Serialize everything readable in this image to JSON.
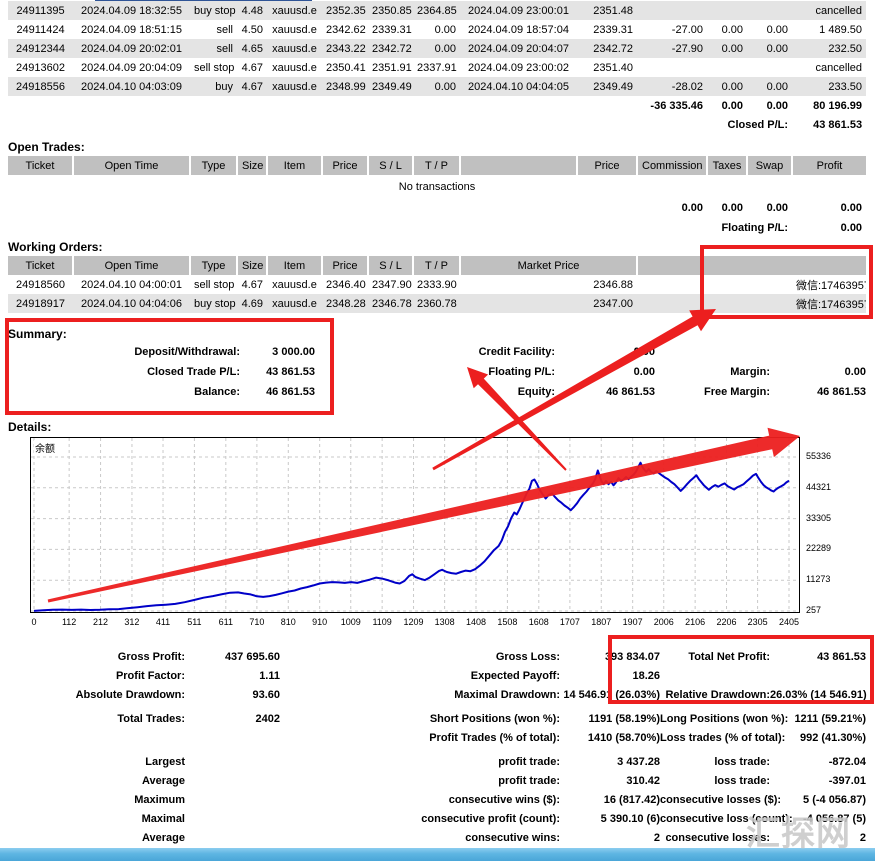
{
  "colors": {
    "annotation_red": "#ec1f1f",
    "chart_line": "#0000c8",
    "table_header_bg": "#c0c0c0",
    "row_stripe": "#e4e4e4",
    "bottom_bar_blue": "#5db5e2"
  },
  "closed_trades": {
    "rows": [
      [
        "24911395",
        "2024.04.09 18:32:55",
        "buy stop",
        "4.48",
        "xauusd.e",
        "2352.35",
        "2350.85",
        "2364.85",
        "2024.04.09 23:00:01",
        "2351.48",
        "",
        "",
        "",
        "cancelled"
      ],
      [
        "24911424",
        "2024.04.09 18:51:15",
        "sell",
        "4.50",
        "xauusd.e",
        "2342.62",
        "2339.31",
        "0.00",
        "2024.04.09 18:57:04",
        "2339.31",
        "-27.00",
        "0.00",
        "0.00",
        "1 489.50"
      ],
      [
        "24912344",
        "2024.04.09 20:02:01",
        "sell",
        "4.65",
        "xauusd.e",
        "2343.22",
        "2342.72",
        "0.00",
        "2024.04.09 20:04:07",
        "2342.72",
        "-27.90",
        "0.00",
        "0.00",
        "232.50"
      ],
      [
        "24913602",
        "2024.04.09 20:04:09",
        "sell stop",
        "4.67",
        "xauusd.e",
        "2350.41",
        "2351.91",
        "2337.91",
        "2024.04.09 23:00:02",
        "2351.40",
        "",
        "",
        "",
        "cancelled"
      ],
      [
        "24918556",
        "2024.04.10 04:03:09",
        "buy",
        "4.67",
        "xauusd.e",
        "2348.99",
        "2349.49",
        "0.00",
        "2024.04.10 04:04:05",
        "2349.49",
        "-28.02",
        "0.00",
        "0.00",
        "233.50"
      ]
    ],
    "totals": {
      "commission": "-36 335.46",
      "taxes": "0.00",
      "swap": "0.00",
      "profit": "80 196.99"
    },
    "closed_pl_label": "Closed P/L:",
    "closed_pl_value": "43 861.53"
  },
  "open_trades": {
    "title": "Open Trades:",
    "headers": [
      {
        "t": "Ticket"
      },
      {
        "t": "Open Time"
      },
      {
        "t": "Type"
      },
      {
        "t": "Size"
      },
      {
        "t": "Item"
      },
      {
        "t": "Price"
      },
      {
        "t": "S / L"
      },
      {
        "t": "T / P"
      },
      {
        "t": ""
      },
      {
        "t": "Price"
      },
      {
        "t": "Commission"
      },
      {
        "t": "Taxes"
      },
      {
        "t": "Swap"
      },
      {
        "t": "Profit"
      }
    ],
    "empty_text": "No transactions",
    "totals": {
      "commission": "0.00",
      "taxes": "0.00",
      "swap": "0.00",
      "profit": "0.00"
    },
    "floating_pl_label": "Floating P/L:",
    "floating_pl_value": "0.00"
  },
  "working_orders": {
    "title": "Working Orders:",
    "headers": [
      {
        "t": "Ticket"
      },
      {
        "t": "Open Time"
      },
      {
        "t": "Type"
      },
      {
        "t": "Size"
      },
      {
        "t": "Item"
      },
      {
        "t": "Price"
      },
      {
        "t": "S / L"
      },
      {
        "t": "T / P"
      },
      {
        "t": "Market Price",
        "span": 2
      },
      {
        "t": "",
        "span": 4
      }
    ],
    "rows": [
      [
        "24918560",
        "2024.04.10 04:00:01",
        "sell stop",
        "4.67",
        "xauusd.e",
        "2346.40",
        "2347.90",
        "2333.90",
        "",
        "2346.88",
        "",
        "",
        "",
        "微信:1746395789"
      ],
      [
        "24918917",
        "2024.04.10 04:04:06",
        "buy stop",
        "4.69",
        "xauusd.e",
        "2348.28",
        "2346.78",
        "2360.78",
        "",
        "2347.00",
        "",
        "",
        "",
        "微信:1746395789"
      ]
    ]
  },
  "summary": {
    "title": "Summary:",
    "col1": [
      {
        "label": "Deposit/Withdrawal:",
        "value": "3 000.00"
      },
      {
        "label": "Closed Trade P/L:",
        "value": "43 861.53"
      },
      {
        "label": "Balance:",
        "value": "46 861.53"
      }
    ],
    "col2": [
      {
        "label": "Credit Facility:",
        "value": "0.00"
      },
      {
        "label": "Floating P/L:",
        "value": "0.00"
      },
      {
        "label": "Equity:",
        "value": "46 861.53"
      }
    ],
    "col3": [
      {
        "label": "",
        "value": ""
      },
      {
        "label": "Margin:",
        "value": "0.00"
      },
      {
        "label": "Free Margin:",
        "value": "46 861.53"
      }
    ]
  },
  "details": {
    "title": "Details:",
    "stats": [
      [
        "Gross Profit:",
        "437 695.60",
        "Gross Loss:",
        "393 834.07",
        "Total Net Profit:",
        "43 861.53"
      ],
      [
        "Profit Factor:",
        "1.11",
        "Expected Payoff:",
        "18.26",
        "",
        ""
      ],
      [
        "Absolute Drawdown:",
        "93.60",
        "Maximal Drawdown:",
        "14 546.91 (26.03%)",
        "Relative Drawdown:",
        "26.03% (14 546.91)"
      ],
      [
        "Total Trades:",
        "2402",
        "Short Positions (won %):",
        "1191 (58.19%)",
        "Long Positions (won %):",
        "1211 (59.21%)"
      ],
      [
        "",
        "",
        "Profit Trades (% of total):",
        "1410 (58.70%)",
        "Loss trades (% of total):",
        "992 (41.30%)"
      ],
      [
        "Largest",
        "",
        "profit trade:",
        "3 437.28",
        "loss trade:",
        "-872.04"
      ],
      [
        "Average",
        "",
        "profit trade:",
        "310.42",
        "loss trade:",
        "-397.01"
      ],
      [
        "Maximum",
        "",
        "consecutive wins ($):",
        "16 (817.42)",
        "consecutive losses ($):",
        "5 (-4 056.87)"
      ],
      [
        "Maximal",
        "",
        "consecutive profit (count):",
        "5 390.10 (6)",
        "consecutive loss (count):",
        "-4 056.87 (5)"
      ],
      [
        "Average",
        "",
        "consecutive wins:",
        "2",
        "consecutive losses:",
        "2"
      ]
    ]
  },
  "chart_data": {
    "type": "line",
    "title": "",
    "legend": "余额",
    "x_ticks": [
      0,
      112,
      212,
      312,
      411,
      511,
      611,
      710,
      810,
      910,
      1009,
      1109,
      1209,
      1308,
      1408,
      1508,
      1608,
      1707,
      1807,
      1907,
      2006,
      2106,
      2206,
      2305,
      2405
    ],
    "y_ticks": [
      257,
      11273,
      22289,
      33305,
      44321,
      55336
    ],
    "x_range": [
      0,
      2405
    ],
    "y_range": [
      257,
      55336
    ],
    "grid": true,
    "legend_position": "top-left",
    "series": [
      {
        "name": "余额",
        "points": [
          [
            0,
            300
          ],
          [
            30,
            500
          ],
          [
            60,
            700
          ],
          [
            90,
            750
          ],
          [
            120,
            650
          ],
          [
            150,
            750
          ],
          [
            180,
            600
          ],
          [
            210,
            700
          ],
          [
            240,
            850
          ],
          [
            270,
            950
          ],
          [
            300,
            1300
          ],
          [
            330,
            1600
          ],
          [
            360,
            2000
          ],
          [
            390,
            2300
          ],
          [
            420,
            2500
          ],
          [
            450,
            2800
          ],
          [
            480,
            3400
          ],
          [
            510,
            4200
          ],
          [
            540,
            5000
          ],
          [
            570,
            5600
          ],
          [
            600,
            6300
          ],
          [
            625,
            6800
          ],
          [
            650,
            6900
          ],
          [
            670,
            6500
          ],
          [
            690,
            6200
          ],
          [
            710,
            5500
          ],
          [
            730,
            5300
          ],
          [
            750,
            5600
          ],
          [
            770,
            6000
          ],
          [
            790,
            6600
          ],
          [
            810,
            7200
          ],
          [
            830,
            7600
          ],
          [
            850,
            8300
          ],
          [
            870,
            8800
          ],
          [
            890,
            9400
          ],
          [
            910,
            10100
          ],
          [
            930,
            10400
          ],
          [
            950,
            10600
          ],
          [
            970,
            10500
          ],
          [
            990,
            10300
          ],
          [
            1010,
            10600
          ],
          [
            1030,
            10300
          ],
          [
            1050,
            10900
          ],
          [
            1070,
            11500
          ],
          [
            1090,
            12200
          ],
          [
            1110,
            11800
          ],
          [
            1130,
            11200
          ],
          [
            1150,
            10400
          ],
          [
            1165,
            10100
          ],
          [
            1180,
            11000
          ],
          [
            1195,
            12800
          ],
          [
            1205,
            13400
          ],
          [
            1215,
            12400
          ],
          [
            1230,
            11800
          ],
          [
            1245,
            11300
          ],
          [
            1260,
            12200
          ],
          [
            1275,
            13400
          ],
          [
            1290,
            14600
          ],
          [
            1300,
            15000
          ],
          [
            1315,
            14200
          ],
          [
            1330,
            13800
          ],
          [
            1345,
            13600
          ],
          [
            1360,
            14200
          ],
          [
            1375,
            14700
          ],
          [
            1390,
            14500
          ],
          [
            1405,
            15200
          ],
          [
            1420,
            16500
          ],
          [
            1435,
            18000
          ],
          [
            1450,
            20000
          ],
          [
            1465,
            22000
          ],
          [
            1480,
            23500
          ],
          [
            1490,
            25500
          ],
          [
            1500,
            28500
          ],
          [
            1510,
            30500
          ],
          [
            1520,
            33500
          ],
          [
            1530,
            35500
          ],
          [
            1538,
            34800
          ],
          [
            1546,
            36500
          ],
          [
            1554,
            38500
          ],
          [
            1562,
            40500
          ],
          [
            1570,
            42500
          ],
          [
            1578,
            44000
          ],
          [
            1586,
            46800
          ],
          [
            1594,
            47300
          ],
          [
            1602,
            45800
          ],
          [
            1610,
            43800
          ],
          [
            1620,
            42000
          ],
          [
            1630,
            40500
          ],
          [
            1640,
            41800
          ],
          [
            1650,
            42300
          ],
          [
            1660,
            41000
          ],
          [
            1670,
            39800
          ],
          [
            1680,
            39000
          ],
          [
            1690,
            38000
          ],
          [
            1700,
            37200
          ],
          [
            1710,
            36300
          ],
          [
            1720,
            37500
          ],
          [
            1730,
            38800
          ],
          [
            1740,
            40500
          ],
          [
            1750,
            41800
          ],
          [
            1760,
            43000
          ],
          [
            1770,
            44500
          ],
          [
            1780,
            45800
          ],
          [
            1788,
            47500
          ],
          [
            1796,
            50500
          ],
          [
            1802,
            48500
          ],
          [
            1808,
            46500
          ],
          [
            1815,
            45600
          ],
          [
            1822,
            46800
          ],
          [
            1830,
            45600
          ],
          [
            1838,
            46500
          ],
          [
            1846,
            45200
          ],
          [
            1854,
            46300
          ],
          [
            1862,
            47800
          ],
          [
            1870,
            46800
          ],
          [
            1878,
            47300
          ],
          [
            1886,
            48200
          ],
          [
            1894,
            47400
          ],
          [
            1902,
            48300
          ],
          [
            1910,
            49000
          ],
          [
            1918,
            50200
          ],
          [
            1926,
            52000
          ],
          [
            1932,
            53300
          ],
          [
            1938,
            51800
          ],
          [
            1944,
            50800
          ],
          [
            1950,
            50000
          ],
          [
            1958,
            51000
          ],
          [
            1966,
            50000
          ],
          [
            1974,
            49400
          ],
          [
            1982,
            50300
          ],
          [
            1990,
            49600
          ],
          [
            2000,
            48800
          ],
          [
            2010,
            48000
          ],
          [
            2020,
            47400
          ],
          [
            2030,
            46400
          ],
          [
            2040,
            45600
          ],
          [
            2050,
            44400
          ],
          [
            2060,
            43200
          ],
          [
            2070,
            44300
          ],
          [
            2080,
            45600
          ],
          [
            2090,
            46800
          ],
          [
            2100,
            47800
          ],
          [
            2110,
            48800
          ],
          [
            2118,
            47400
          ],
          [
            2126,
            46300
          ],
          [
            2134,
            45200
          ],
          [
            2142,
            44400
          ],
          [
            2150,
            43600
          ],
          [
            2160,
            44600
          ],
          [
            2170,
            45300
          ],
          [
            2180,
            44700
          ],
          [
            2190,
            45400
          ],
          [
            2200,
            45900
          ],
          [
            2210,
            44900
          ],
          [
            2220,
            44300
          ],
          [
            2230,
            43700
          ],
          [
            2240,
            44500
          ],
          [
            2250,
            45000
          ],
          [
            2260,
            45600
          ],
          [
            2270,
            46600
          ],
          [
            2280,
            47600
          ],
          [
            2290,
            48700
          ],
          [
            2300,
            49300
          ],
          [
            2308,
            47800
          ],
          [
            2316,
            46400
          ],
          [
            2324,
            45300
          ],
          [
            2332,
            44500
          ],
          [
            2340,
            44000
          ],
          [
            2348,
            43400
          ],
          [
            2356,
            43000
          ],
          [
            2364,
            43800
          ],
          [
            2372,
            44400
          ],
          [
            2380,
            44900
          ],
          [
            2388,
            45400
          ],
          [
            2396,
            46200
          ],
          [
            2405,
            46861
          ]
        ]
      }
    ]
  },
  "watermark": "汇探网"
}
